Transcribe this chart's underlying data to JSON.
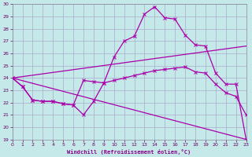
{
  "xlabel": "Windchill (Refroidissement éolien,°C)",
  "background_color": "#c5e8e8",
  "grid_color": "#aaaacc",
  "line_color": "#aa00aa",
  "ylim": [
    19,
    30
  ],
  "xlim": [
    0,
    23
  ],
  "yticks": [
    19,
    20,
    21,
    22,
    23,
    24,
    25,
    26,
    27,
    28,
    29,
    30
  ],
  "xticks": [
    0,
    1,
    2,
    3,
    4,
    5,
    6,
    7,
    8,
    9,
    10,
    11,
    12,
    13,
    14,
    15,
    16,
    17,
    18,
    19,
    20,
    21,
    22,
    23
  ],
  "line1_x": [
    0,
    1,
    2,
    3,
    4,
    5,
    6,
    7,
    8,
    9,
    10,
    11,
    12,
    13,
    14,
    15,
    16,
    17,
    18,
    19,
    20,
    21,
    22,
    23
  ],
  "line1_y": [
    24.0,
    23.3,
    22.2,
    22.1,
    22.1,
    21.9,
    21.8,
    21.0,
    22.1,
    23.6,
    25.7,
    27.0,
    27.4,
    29.2,
    29.8,
    28.9,
    28.8,
    27.5,
    26.7,
    26.6,
    24.4,
    23.5,
    23.5,
    19.0
  ],
  "line2_x": [
    0,
    1,
    2,
    3,
    4,
    5,
    6,
    7,
    8,
    9,
    10,
    11,
    12,
    13,
    14,
    15,
    16,
    17,
    18,
    19,
    20,
    21,
    22,
    23
  ],
  "line2_y": [
    24.0,
    23.3,
    22.2,
    22.1,
    22.1,
    21.9,
    21.8,
    23.8,
    23.7,
    23.6,
    23.8,
    24.0,
    24.2,
    24.4,
    24.6,
    24.7,
    24.8,
    24.9,
    24.5,
    24.4,
    23.5,
    22.8,
    22.5,
    21.0
  ],
  "line3_x": [
    0,
    23
  ],
  "line3_y": [
    24.0,
    26.6
  ],
  "line4_x": [
    0,
    23
  ],
  "line4_y": [
    24.0,
    19.0
  ]
}
